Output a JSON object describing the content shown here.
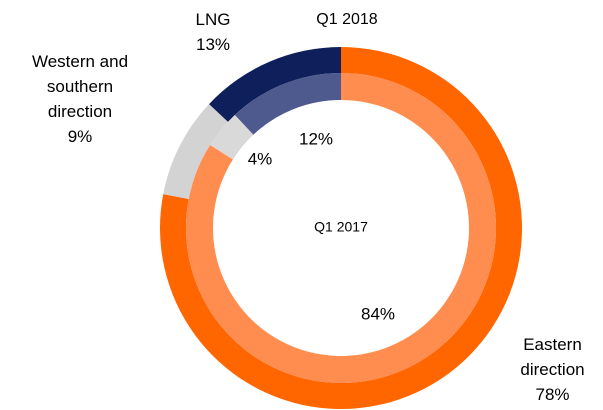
{
  "chart_data": {
    "type": "donut",
    "categories": [
      "Eastern direction",
      "Western and southern direction",
      "LNG"
    ],
    "rings": [
      {
        "name": "Q1 2018",
        "values": [
          78,
          9,
          13
        ],
        "value_labels": [
          "78%",
          "9%",
          "13%"
        ],
        "colors": [
          "#ff6600",
          "#d3d3d3",
          "#0e1f5c"
        ]
      },
      {
        "name": "Q1 2017",
        "values": [
          84,
          4,
          12
        ],
        "value_labels": [
          "84%",
          "4%",
          "12%"
        ],
        "colors": [
          "#ff8d4f",
          "#d9d9d9",
          "#4e5a8e"
        ]
      }
    ]
  }
}
